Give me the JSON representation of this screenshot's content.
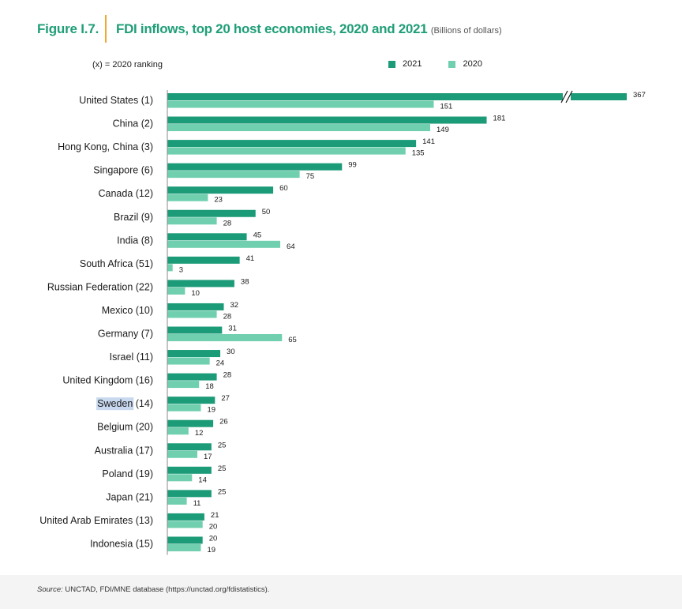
{
  "figure": {
    "number": "Figure I.7.",
    "title": "FDI inflows, top 20 host economies, 2020 and 2021",
    "units": "(Billions of dollars)",
    "ranking_note": "(x) = 2020  ranking"
  },
  "colors": {
    "accent": "#1f9e77",
    "divider": "#f0a830",
    "series_2021": "#1c9b78",
    "series_2020": "#6fcfae"
  },
  "source": {
    "label": "Source:",
    "text": "UNCTAD, FDI/MNE database (https://unctad.org/fdistatistics)."
  },
  "chart_data": {
    "type": "bar",
    "orientation": "horizontal",
    "title": "FDI inflows, top 20 host economies, 2020 and 2021",
    "units": "Billions of dollars",
    "axis_break": "United States 2021 bar is broken (//) and not drawn to scale",
    "legend_position": "top-right",
    "categories": [
      "United States (1)",
      "China (2)",
      "Hong Kong, China (3)",
      "Singapore (6)",
      "Canada (12)",
      "Brazil (9)",
      "India (8)",
      "South Africa (51)",
      "Russian Federation (22)",
      "Mexico (10)",
      "Germany (7)",
      "Israel (11)",
      "United Kingdom (16)",
      "Sweden (14)",
      "Belgium (20)",
      "Australia (17)",
      "Poland (19)",
      "Japan (21)",
      "United Arab Emirates (13)",
      "Indonesia (15)"
    ],
    "highlighted_category_text": "Sweden",
    "series": [
      {
        "name": "2021",
        "values": [
          367,
          181,
          141,
          99,
          60,
          50,
          45,
          41,
          38,
          32,
          31,
          30,
          28,
          27,
          26,
          25,
          25,
          25,
          21,
          20
        ]
      },
      {
        "name": "2020",
        "values": [
          151,
          149,
          135,
          75,
          23,
          28,
          64,
          3,
          10,
          28,
          65,
          24,
          18,
          19,
          12,
          17,
          14,
          11,
          20,
          19
        ]
      }
    ]
  }
}
